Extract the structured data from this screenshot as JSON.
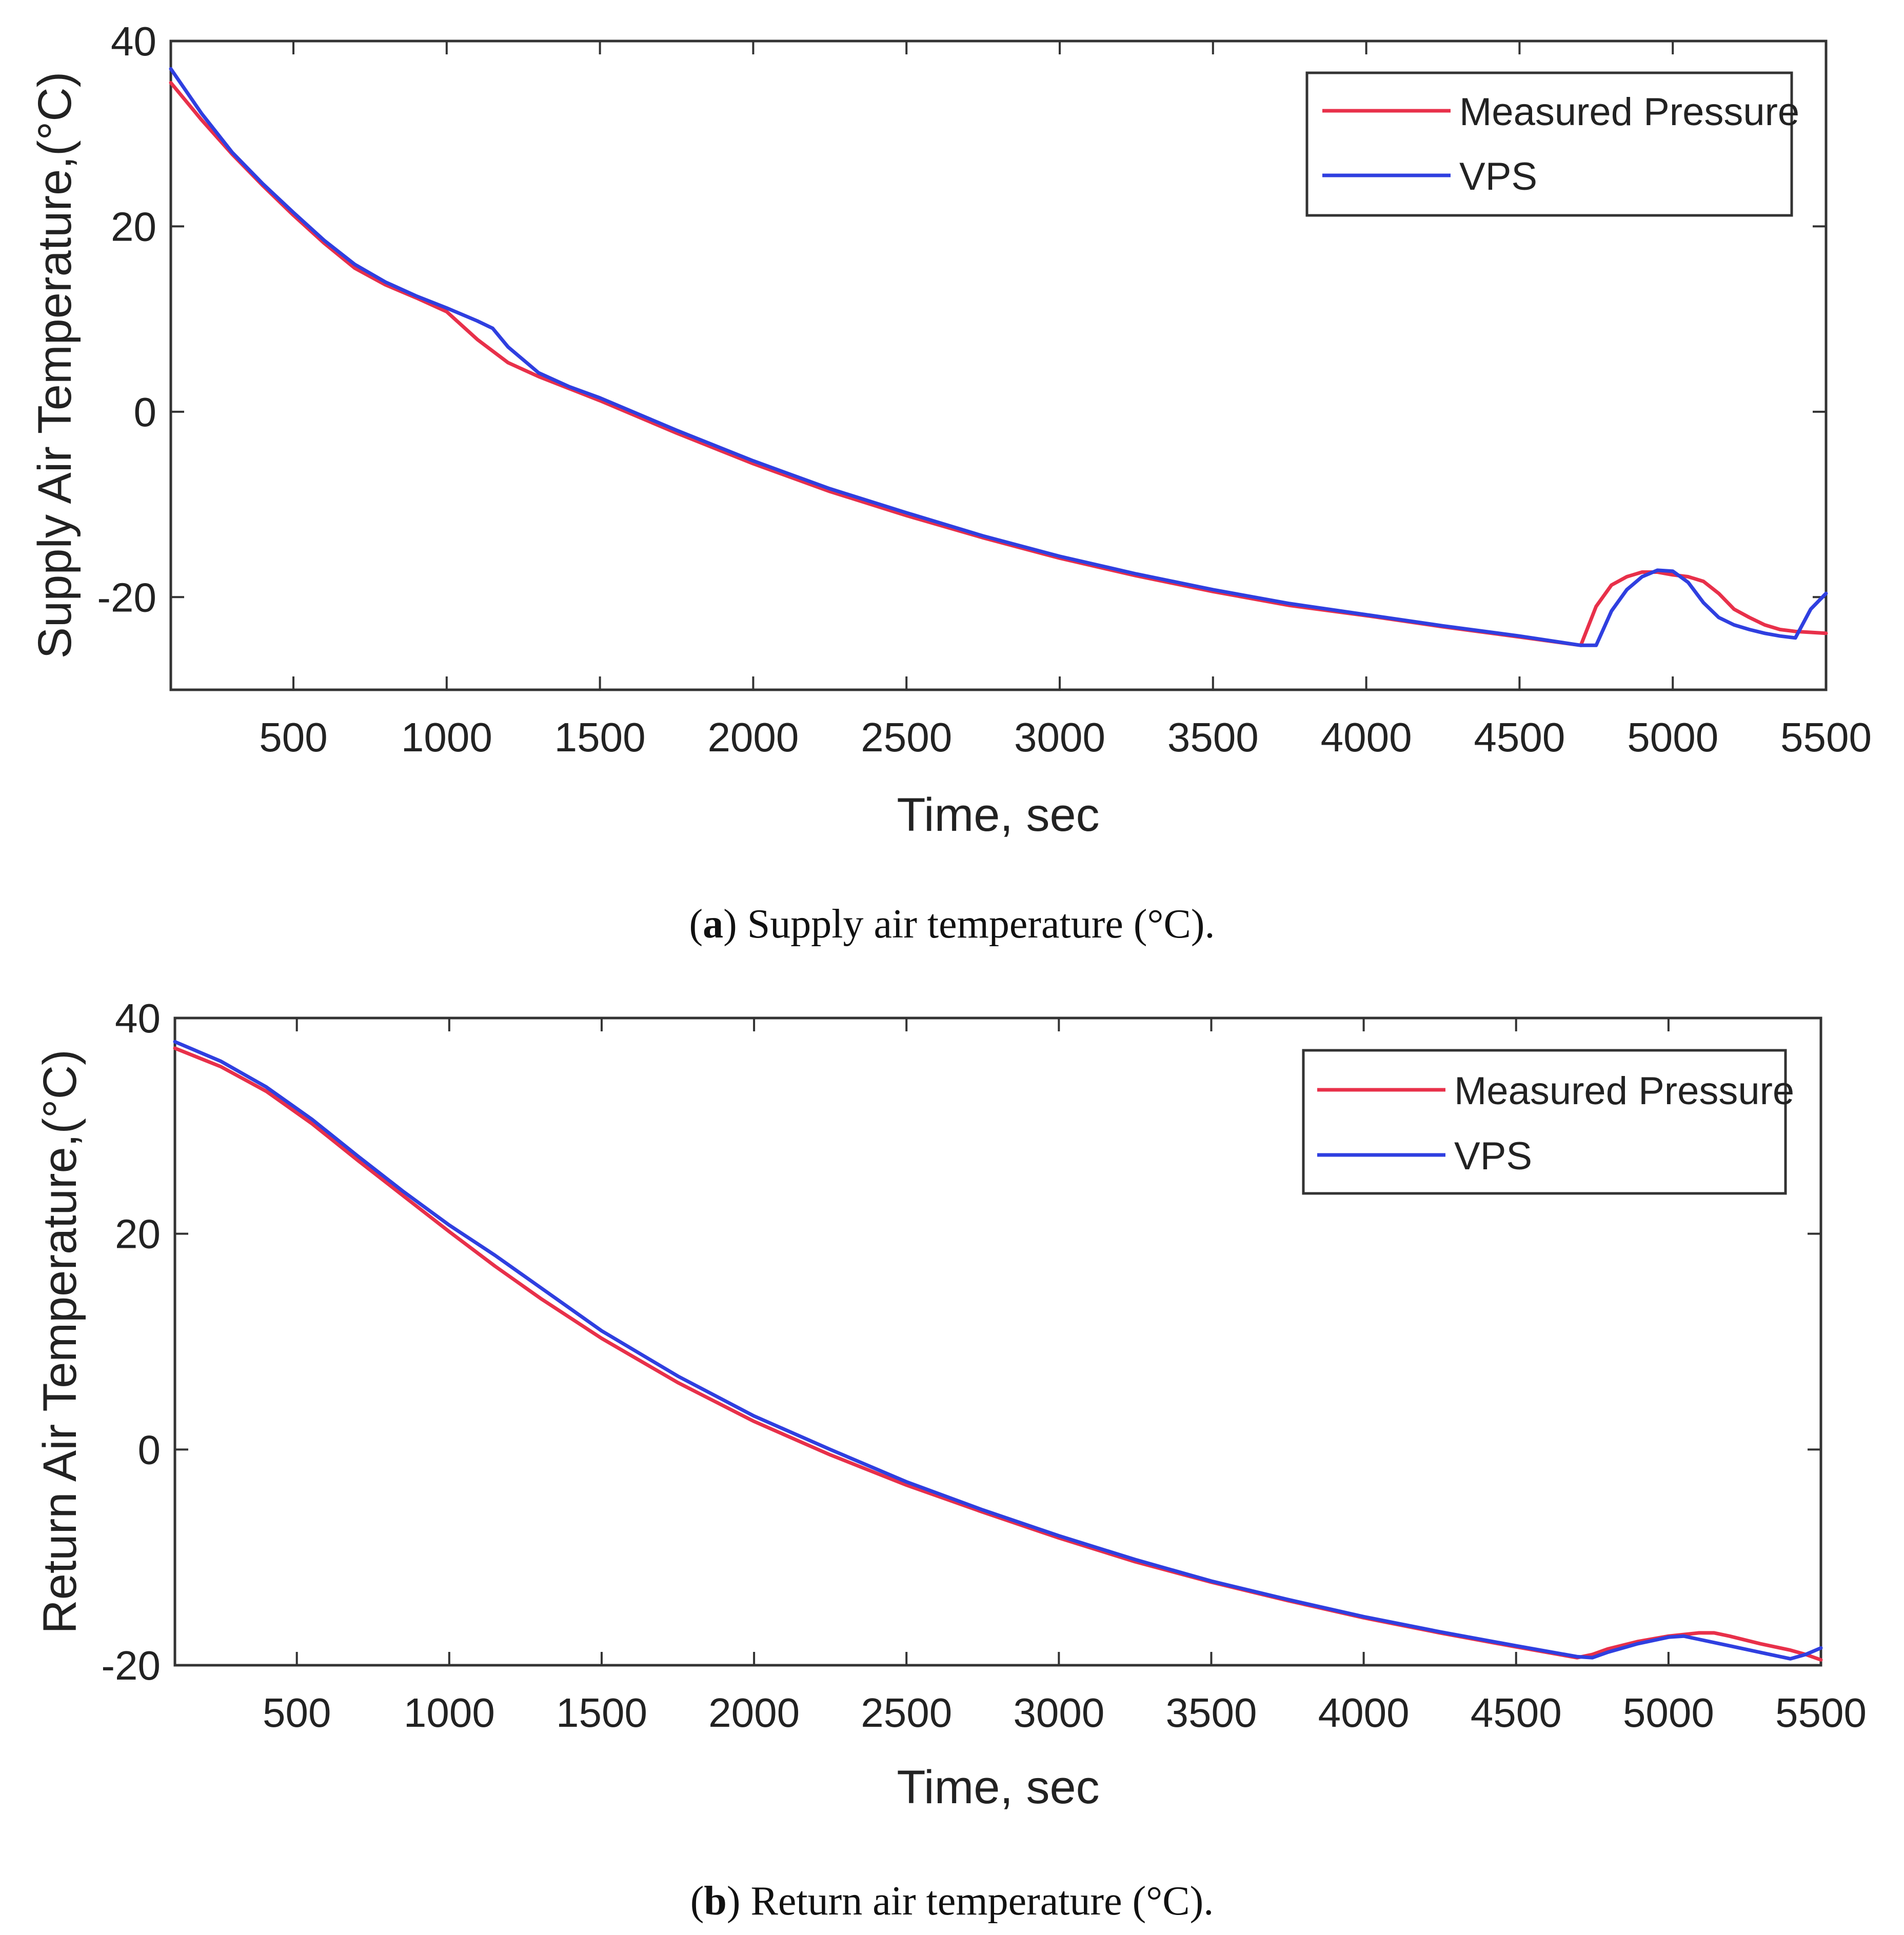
{
  "colors": {
    "measured": "#e8304a",
    "vps": "#2f3fe0",
    "axis": "#333333"
  },
  "chart_data": [
    {
      "type": "line",
      "caption": {
        "open": "(",
        "letter": "a",
        "text": ") Supply air temperature (°C)."
      },
      "xlabel": "Time, sec",
      "ylabel": "Supply Air Temperature,(°C)",
      "xlim": [
        100,
        5500
      ],
      "ylim": [
        -30,
        40
      ],
      "xticks": [
        500,
        1000,
        1500,
        2000,
        2500,
        3000,
        3500,
        4000,
        4500,
        5000,
        5500
      ],
      "yticks": [
        40,
        20,
        0,
        -20
      ],
      "legend": {
        "position": "top-right",
        "entries": [
          "Measured Pressure",
          "VPS"
        ]
      },
      "series": [
        {
          "name": "Measured Pressure",
          "x": [
            100,
            200,
            300,
            400,
            500,
            600,
            700,
            800,
            900,
            1000,
            1100,
            1200,
            1300,
            1400,
            1500,
            1750,
            2000,
            2250,
            2500,
            2750,
            3000,
            3250,
            3500,
            3750,
            4000,
            4250,
            4500,
            4700,
            4750,
            4800,
            4850,
            4900,
            4950,
            5000,
            5050,
            5100,
            5150,
            5200,
            5250,
            5300,
            5350,
            5400,
            5450,
            5500
          ],
          "y": [
            35.5,
            31.5,
            27.8,
            24.4,
            21.2,
            18.2,
            15.5,
            13.7,
            12.3,
            10.8,
            7.8,
            5.3,
            3.8,
            2.5,
            1.2,
            -2.3,
            -5.6,
            -8.6,
            -11.2,
            -13.6,
            -15.8,
            -17.7,
            -19.4,
            -20.9,
            -22.0,
            -23.2,
            -24.3,
            -25.2,
            -21.0,
            -18.7,
            -17.8,
            -17.3,
            -17.3,
            -17.6,
            -17.8,
            -18.3,
            -19.6,
            -21.3,
            -22.2,
            -23.0,
            -23.5,
            -23.7,
            -23.8,
            -23.9
          ]
        },
        {
          "name": "VPS",
          "x": [
            100,
            200,
            300,
            400,
            500,
            600,
            700,
            800,
            900,
            1000,
            1100,
            1150,
            1200,
            1300,
            1400,
            1500,
            1750,
            2000,
            2250,
            2500,
            2750,
            3000,
            3250,
            3500,
            3750,
            4000,
            4250,
            4500,
            4700,
            4750,
            4800,
            4850,
            4900,
            4950,
            5000,
            5050,
            5100,
            5150,
            5200,
            5250,
            5300,
            5350,
            5400,
            5450,
            5500
          ],
          "y": [
            37.0,
            32.2,
            28.0,
            24.6,
            21.5,
            18.5,
            15.9,
            14.0,
            12.5,
            11.2,
            9.8,
            9.0,
            7.0,
            4.2,
            2.7,
            1.5,
            -2.0,
            -5.3,
            -8.3,
            -10.9,
            -13.4,
            -15.6,
            -17.5,
            -19.2,
            -20.7,
            -21.9,
            -23.1,
            -24.2,
            -25.2,
            -25.2,
            -21.5,
            -19.2,
            -17.8,
            -17.1,
            -17.2,
            -18.4,
            -20.6,
            -22.2,
            -23.0,
            -23.5,
            -23.9,
            -24.2,
            -24.4,
            -21.3,
            -19.6
          ]
        }
      ]
    },
    {
      "type": "line",
      "caption": {
        "open": "(",
        "letter": "b",
        "text": ") Return air temperature (°C)."
      },
      "xlabel": "Time, sec",
      "ylabel": "Return Air Temperature,(°C)",
      "xlim": [
        100,
        5500
      ],
      "ylim": [
        -20,
        40
      ],
      "xticks": [
        500,
        1000,
        1500,
        2000,
        2500,
        3000,
        3500,
        4000,
        4500,
        5000,
        5500
      ],
      "yticks": [
        40,
        20,
        0,
        -20
      ],
      "legend": {
        "position": "top-right",
        "entries": [
          "Measured Pressure",
          "VPS"
        ]
      },
      "series": [
        {
          "name": "Measured Pressure",
          "x": [
            100,
            250,
            400,
            550,
            700,
            850,
            1000,
            1150,
            1300,
            1500,
            1750,
            2000,
            2250,
            2500,
            2750,
            3000,
            3250,
            3500,
            3750,
            4000,
            4250,
            4500,
            4700,
            4750,
            4800,
            4900,
            5000,
            5100,
            5150,
            5200,
            5300,
            5400,
            5450,
            5500
          ],
          "y": [
            37.2,
            35.5,
            33.2,
            30.2,
            26.8,
            23.5,
            20.2,
            17.0,
            14.0,
            10.3,
            6.2,
            2.6,
            -0.5,
            -3.3,
            -5.8,
            -8.2,
            -10.4,
            -12.3,
            -14.0,
            -15.6,
            -17.0,
            -18.3,
            -19.3,
            -19.0,
            -18.5,
            -17.8,
            -17.3,
            -17.0,
            -17.0,
            -17.3,
            -18.0,
            -18.6,
            -19.0,
            -19.5
          ]
        },
        {
          "name": "VPS",
          "x": [
            100,
            250,
            400,
            550,
            700,
            850,
            1000,
            1150,
            1300,
            1500,
            1750,
            2000,
            2250,
            2500,
            2750,
            3000,
            3250,
            3500,
            3750,
            4000,
            4250,
            4500,
            4700,
            4750,
            4800,
            4900,
            5000,
            5050,
            5100,
            5200,
            5300,
            5400,
            5450,
            5500
          ],
          "y": [
            37.8,
            36.0,
            33.6,
            30.6,
            27.2,
            23.9,
            20.8,
            18.0,
            15.0,
            11.0,
            6.8,
            3.1,
            0.0,
            -3.0,
            -5.6,
            -8.0,
            -10.2,
            -12.2,
            -13.9,
            -15.5,
            -16.9,
            -18.2,
            -19.2,
            -19.3,
            -18.8,
            -18.0,
            -17.4,
            -17.3,
            -17.6,
            -18.2,
            -18.8,
            -19.4,
            -19.0,
            -18.4
          ]
        }
      ]
    }
  ]
}
